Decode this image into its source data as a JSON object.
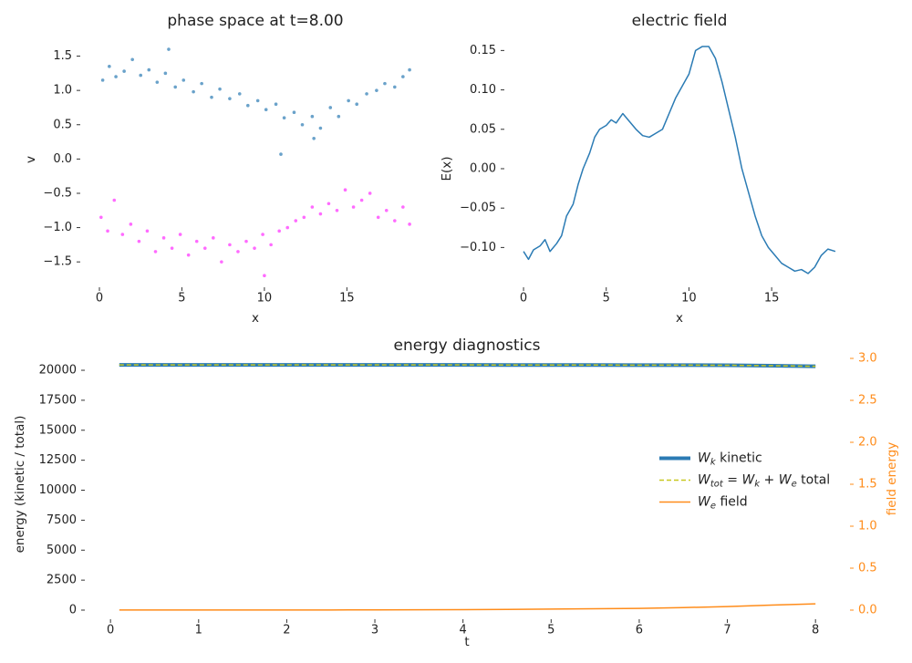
{
  "chart_data": [
    {
      "type": "scatter",
      "title": "phase space at t=8.00",
      "xlabel": "x",
      "ylabel": "v",
      "xlim": [
        -0.94,
        19.79
      ],
      "ylim": [
        -1.83,
        1.72
      ],
      "xticks": [
        0,
        5,
        10,
        15
      ],
      "yticks": [
        {
          "value": -1.5,
          "label": "−1.5"
        },
        {
          "value": -1.0,
          "label": "−1.0"
        },
        {
          "value": -0.5,
          "label": "−0.5"
        },
        {
          "value": 0.0,
          "label": "0.0"
        },
        {
          "value": 0.5,
          "label": "0.5"
        },
        {
          "value": 1.0,
          "label": "1.0"
        },
        {
          "value": 1.5,
          "label": "1.5"
        }
      ],
      "series": [
        {
          "color": "#2b7bb4",
          "x": [
            0.2,
            0.6,
            1.0,
            1.5,
            2.0,
            2.5,
            3.0,
            3.5,
            4.0,
            4.6,
            5.1,
            5.7,
            6.2,
            6.8,
            7.3,
            7.9,
            8.5,
            9.0,
            9.6,
            10.1,
            10.7,
            11.2,
            11.8,
            12.3,
            12.9,
            13.4,
            14.0,
            14.5,
            15.1,
            15.6,
            16.2,
            16.8,
            17.3,
            17.9,
            18.4,
            18.8,
            11.0,
            13.0,
            4.2
          ],
          "values": [
            1.15,
            1.35,
            1.2,
            1.28,
            1.45,
            1.22,
            1.3,
            1.12,
            1.25,
            1.05,
            1.15,
            0.98,
            1.1,
            0.9,
            1.02,
            0.88,
            0.95,
            0.78,
            0.85,
            0.72,
            0.8,
            0.6,
            0.68,
            0.5,
            0.62,
            0.45,
            0.75,
            0.62,
            0.85,
            0.8,
            0.95,
            1.0,
            1.1,
            1.05,
            1.2,
            1.3,
            0.07,
            0.3,
            1.6
          ]
        },
        {
          "color": "#ff2cff",
          "x": [
            0.1,
            0.5,
            0.9,
            1.4,
            1.9,
            2.4,
            2.9,
            3.4,
            3.9,
            4.4,
            4.9,
            5.4,
            5.9,
            6.4,
            6.9,
            7.4,
            7.9,
            8.4,
            8.9,
            9.4,
            9.9,
            10.4,
            10.9,
            11.4,
            11.9,
            12.4,
            12.9,
            13.4,
            13.9,
            14.4,
            14.9,
            15.4,
            15.9,
            16.4,
            16.9,
            17.4,
            17.9,
            18.4,
            18.8,
            10.0
          ],
          "values": [
            -0.85,
            -1.05,
            -0.6,
            -1.1,
            -0.95,
            -1.2,
            -1.05,
            -1.35,
            -1.15,
            -1.3,
            -1.1,
            -1.4,
            -1.2,
            -1.3,
            -1.15,
            -1.5,
            -1.25,
            -1.35,
            -1.2,
            -1.3,
            -1.1,
            -1.25,
            -1.05,
            -1.0,
            -0.9,
            -0.85,
            -0.7,
            -0.8,
            -0.65,
            -0.75,
            -0.45,
            -0.7,
            -0.6,
            -0.5,
            -0.85,
            -0.75,
            -0.9,
            -0.7,
            -0.95,
            -1.7
          ]
        }
      ]
    },
    {
      "type": "line",
      "title": "electric field",
      "xlabel": "x",
      "ylabel": "E(x)",
      "xlim": [
        -0.94,
        19.79
      ],
      "ylim": [
        -0.147,
        0.162
      ],
      "xticks": [
        0,
        5,
        10,
        15
      ],
      "yticks": [
        {
          "value": -0.1,
          "label": "−0.10"
        },
        {
          "value": -0.05,
          "label": "−0.05"
        },
        {
          "value": 0.0,
          "label": "0.00"
        },
        {
          "value": 0.05,
          "label": "0.05"
        },
        {
          "value": 0.1,
          "label": "0.10"
        },
        {
          "value": 0.15,
          "label": "0.15"
        }
      ],
      "series": [
        {
          "color": "#2b7bb4",
          "x": [
            0,
            0.3,
            0.6,
            1.0,
            1.3,
            1.6,
            2.0,
            2.3,
            2.6,
            3.0,
            3.3,
            3.6,
            4.0,
            4.3,
            4.6,
            5.0,
            5.3,
            5.6,
            6.0,
            6.4,
            6.8,
            7.2,
            7.6,
            8.0,
            8.4,
            8.8,
            9.2,
            9.6,
            10.0,
            10.4,
            10.8,
            11.2,
            11.6,
            12.0,
            12.4,
            12.8,
            13.2,
            13.6,
            14.0,
            14.4,
            14.8,
            15.2,
            15.6,
            16.0,
            16.4,
            16.8,
            17.2,
            17.6,
            18.0,
            18.4,
            18.85
          ],
          "values": [
            -0.105,
            -0.115,
            -0.103,
            -0.098,
            -0.09,
            -0.105,
            -0.095,
            -0.085,
            -0.06,
            -0.045,
            -0.02,
            0.0,
            0.02,
            0.04,
            0.05,
            0.055,
            0.062,
            0.058,
            0.07,
            0.06,
            0.05,
            0.042,
            0.04,
            0.045,
            0.05,
            0.07,
            0.09,
            0.105,
            0.12,
            0.15,
            0.155,
            0.155,
            0.14,
            0.11,
            0.075,
            0.04,
            0.0,
            -0.03,
            -0.06,
            -0.085,
            -0.1,
            -0.11,
            -0.12,
            -0.125,
            -0.13,
            -0.128,
            -0.133,
            -0.125,
            -0.11,
            -0.102,
            -0.105
          ]
        }
      ]
    },
    {
      "type": "line",
      "title": "energy diagnostics",
      "xlabel": "t",
      "ylabel": "energy (kinetic / total)",
      "y2label": "field energy",
      "xlim": [
        -0.25,
        8.35
      ],
      "ylim": [
        -532,
        20990
      ],
      "y2lim": [
        -0.076,
        3.0
      ],
      "xticks": [
        0,
        1,
        2,
        3,
        4,
        5,
        6,
        7,
        8
      ],
      "yticks": [
        0,
        2500,
        5000,
        7500,
        10000,
        12500,
        15000,
        17500,
        20000
      ],
      "y2ticks": [
        {
          "value": 0.0,
          "label": "0.0"
        },
        {
          "value": 0.5,
          "label": "0.5"
        },
        {
          "value": 1.0,
          "label": "1.0"
        },
        {
          "value": 1.5,
          "label": "1.5"
        },
        {
          "value": 2.0,
          "label": "2.0"
        },
        {
          "value": 2.5,
          "label": "2.5"
        },
        {
          "value": 3.0,
          "label": "3.0"
        }
      ],
      "legend": "center right",
      "x": [
        0.1,
        0.5,
        1,
        1.5,
        2,
        2.5,
        3,
        3.5,
        4,
        4.5,
        5,
        5.5,
        6,
        6.5,
        7,
        7.5,
        8
      ],
      "series": [
        {
          "name": "$W_k$ kinetic",
          "color": "#2b7bb4",
          "linewidth": 4,
          "linestyle": "solid",
          "values": [
            20450,
            20450,
            20450,
            20450,
            20450,
            20450,
            20448,
            20447,
            20445,
            20442,
            20440,
            20436,
            20432,
            20428,
            20420,
            20380,
            20330
          ]
        },
        {
          "name": "$W_{tot} = W_k + W_e$ total",
          "color": "#c8c820",
          "linewidth": 1.5,
          "linestyle": "dashed",
          "values": [
            20450,
            20450,
            20450,
            20450,
            20450,
            20450,
            20448,
            20447,
            20445,
            20442,
            20440,
            20436,
            20432,
            20428,
            20420,
            20380,
            20330
          ]
        },
        {
          "name": "$W_e$ field",
          "color": "#ff8c1a",
          "linewidth": 1.5,
          "linestyle": "solid",
          "axis": "y2",
          "values": [
            0.001,
            0.001,
            0.001,
            0.001,
            0.002,
            0.002,
            0.003,
            0.004,
            0.005,
            0.008,
            0.012,
            0.016,
            0.02,
            0.03,
            0.042,
            0.06,
            0.075
          ]
        }
      ]
    }
  ]
}
